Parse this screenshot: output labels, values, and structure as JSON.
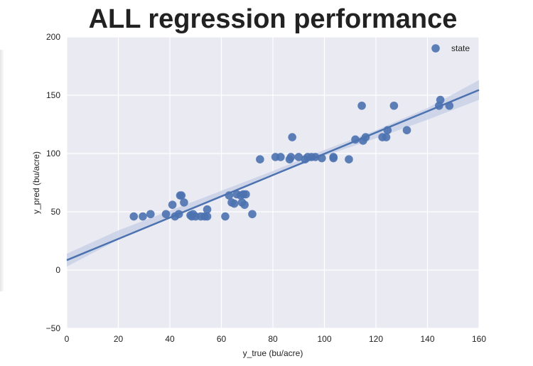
{
  "chart_data": {
    "type": "scatter",
    "title": "ALL regression performance",
    "xlabel": "y_true (bu/acre)",
    "ylabel": "y_pred (bu/acre)",
    "xlim": [
      0,
      160
    ],
    "ylim": [
      -50,
      200
    ],
    "xticks": [
      0,
      20,
      40,
      60,
      80,
      100,
      120,
      140,
      160
    ],
    "yticks": [
      -50,
      0,
      50,
      100,
      150,
      200
    ],
    "grid": true,
    "legend": {
      "placement": "top-right",
      "entries": [
        "state"
      ]
    },
    "colors": {
      "background": "#eaeaf2",
      "grid": "#ffffff",
      "point": "#4c72b0",
      "band": "#c7cfe6"
    },
    "series": [
      {
        "name": "state",
        "points": [
          [
            26,
            46
          ],
          [
            29.5,
            46
          ],
          [
            32.5,
            48
          ],
          [
            38.5,
            48
          ],
          [
            41,
            56
          ],
          [
            42,
            46
          ],
          [
            43.5,
            48
          ],
          [
            44,
            64
          ],
          [
            44.5,
            64
          ],
          [
            45.5,
            58
          ],
          [
            48,
            47
          ],
          [
            48.5,
            46
          ],
          [
            49,
            48
          ],
          [
            50,
            46
          ],
          [
            52,
            46
          ],
          [
            53.5,
            46
          ],
          [
            54.5,
            46
          ],
          [
            54.5,
            52
          ],
          [
            61.5,
            46
          ],
          [
            63,
            64
          ],
          [
            64,
            58
          ],
          [
            65,
            57
          ],
          [
            66,
            65
          ],
          [
            67.5,
            64
          ],
          [
            68,
            58
          ],
          [
            68.5,
            65
          ],
          [
            69,
            56
          ],
          [
            69.5,
            65
          ],
          [
            72,
            48
          ],
          [
            75,
            95
          ],
          [
            81,
            97
          ],
          [
            83,
            97
          ],
          [
            86.5,
            95
          ],
          [
            87,
            97
          ],
          [
            87.5,
            114
          ],
          [
            90,
            97
          ],
          [
            92.5,
            95
          ],
          [
            93.5,
            97
          ],
          [
            95,
            97
          ],
          [
            96.5,
            97
          ],
          [
            99,
            96
          ],
          [
            103.5,
            97
          ],
          [
            103.5,
            96
          ],
          [
            109.5,
            95
          ],
          [
            112,
            112
          ],
          [
            114.5,
            141
          ],
          [
            115,
            111
          ],
          [
            116,
            114
          ],
          [
            122.5,
            114
          ],
          [
            124,
            114
          ],
          [
            124.5,
            120
          ],
          [
            127,
            141
          ],
          [
            132,
            120
          ],
          [
            144.5,
            141
          ],
          [
            145,
            146
          ],
          [
            148.5,
            141
          ]
        ]
      }
    ],
    "regression": {
      "x": [
        0,
        160
      ],
      "y": [
        8.5,
        154.5
      ]
    },
    "confidence_band": {
      "x": [
        0,
        20,
        40,
        60,
        80,
        100,
        120,
        140,
        160
      ],
      "lower": [
        3,
        26,
        45,
        64,
        81,
        98,
        113,
        129,
        146
      ],
      "upper": [
        14,
        34,
        51,
        68,
        85,
        103,
        120,
        139,
        163
      ]
    }
  }
}
